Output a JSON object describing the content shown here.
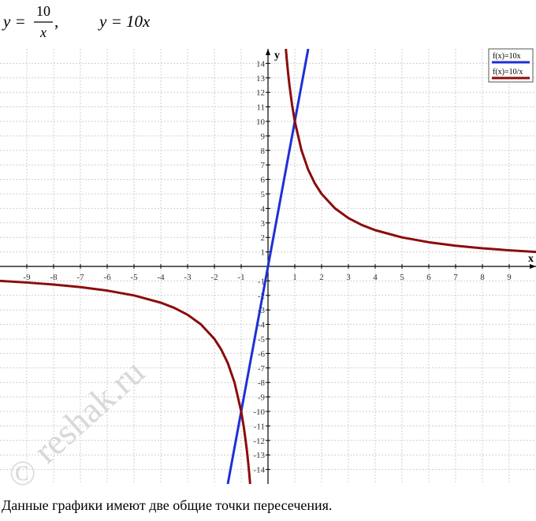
{
  "chart_data": {
    "type": "line",
    "title": {
      "lhs": "y =",
      "numerator": "10",
      "denominator": "x",
      "separator": ","
    },
    "subtitle": "y = 10x",
    "caption": "Данные графики имеют две общие точки пересечения.",
    "watermark": "reshak.ru",
    "watermark_symbol": "©",
    "x_label": "x",
    "y_label": "y",
    "xlim": [
      -10,
      10
    ],
    "ylim": [
      -15,
      15
    ],
    "xticks": [
      -9,
      -8,
      -7,
      -6,
      -5,
      -4,
      -3,
      -2,
      -1,
      1,
      2,
      3,
      4,
      5,
      6,
      7,
      8,
      9
    ],
    "yticks": [
      -14,
      -13,
      -12,
      -11,
      -10,
      -9,
      -8,
      -7,
      -6,
      -5,
      -4,
      -3,
      -2,
      -1,
      1,
      2,
      3,
      4,
      5,
      6,
      7,
      8,
      9,
      10,
      11,
      12,
      13,
      14
    ],
    "grid": true,
    "legend": "top-right",
    "series": [
      {
        "name": "f(x)=10x",
        "color": "#1f2fd6",
        "x": [
          -1.5,
          1.5
        ],
        "values": [
          -15,
          15
        ]
      },
      {
        "name": "f(x)=10/x",
        "color": "#8b0c0c",
        "x": [
          -10,
          -9,
          -8,
          -7,
          -6,
          -5,
          -4,
          -3.5,
          -3,
          -2.5,
          -2,
          -1.75,
          -1.5,
          -1.25,
          -1,
          -0.9,
          -0.8,
          -0.75,
          -0.7,
          -0.667,
          0,
          0.667,
          0.7,
          0.75,
          0.8,
          0.9,
          1,
          1.25,
          1.5,
          1.75,
          2,
          2.5,
          3,
          3.5,
          4,
          5,
          6,
          7,
          8,
          9,
          10
        ],
        "values": [
          -1,
          -1.111,
          -1.25,
          -1.429,
          -1.667,
          -2,
          -2.5,
          -2.857,
          -3.333,
          -4,
          -5,
          -5.714,
          -6.667,
          -8,
          -10,
          -11.111,
          -12.5,
          -13.333,
          -14.286,
          -15,
          null,
          15,
          14.286,
          13.333,
          12.5,
          11.111,
          10,
          8,
          6.667,
          5.714,
          5,
          4,
          3.333,
          2.857,
          2.5,
          2,
          1.667,
          1.429,
          1.25,
          1.111,
          1
        ]
      }
    ]
  }
}
